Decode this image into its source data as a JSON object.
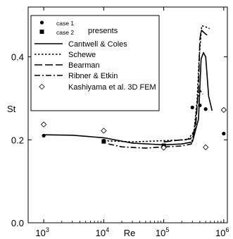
{
  "chart_data": {
    "type": "scatter",
    "title": "",
    "xlabel": "Re",
    "ylabel": "St",
    "xscale": "log",
    "xlim": [
      550,
      1150000
    ],
    "ylim": [
      0.0,
      0.52
    ],
    "x_ticks": [
      {
        "value": 1000,
        "base": "10",
        "exp": "3"
      },
      {
        "value": 10000,
        "base": "10",
        "exp": "4"
      },
      {
        "value": 100000,
        "base": "10",
        "exp": "5"
      },
      {
        "value": 1000000,
        "base": "10",
        "exp": "6"
      }
    ],
    "y_ticks": [
      {
        "value": 0.0,
        "label": "0.0"
      },
      {
        "value": 0.2,
        "label": "0.2"
      },
      {
        "value": 0.4,
        "label": "0.4"
      }
    ],
    "legend": {
      "position": "top-left",
      "group_title": "presents",
      "items": [
        {
          "label": "case 1",
          "marker": "circle"
        },
        {
          "label": "case 2",
          "marker": "square"
        },
        {
          "label": "Cantwell & Coles",
          "line": "solid"
        },
        {
          "label": "Schewe",
          "line": "dotted"
        },
        {
          "label": "Bearman",
          "line": "long-dash"
        },
        {
          "label": "Ribner & Etkin",
          "line": "dash-dot"
        },
        {
          "label": "Kashiyama et al. 3D FEM",
          "marker": "diamond"
        }
      ]
    },
    "series": [
      {
        "name": "case 1",
        "kind": "points",
        "marker": "circle",
        "points": [
          [
            1000,
            0.21
          ],
          [
            10000,
            0.198
          ],
          [
            100000,
            0.183
          ],
          [
            300000,
            0.278
          ],
          [
            400000,
            0.283
          ],
          [
            500000,
            0.274
          ],
          [
            1000000,
            0.215
          ]
        ]
      },
      {
        "name": "case 2",
        "kind": "points",
        "marker": "square",
        "points": [
          [
            10000,
            0.196
          ],
          [
            100000,
            0.186
          ]
        ]
      },
      {
        "name": "Kashiyama et al. 3D FEM",
        "kind": "points",
        "marker": "diamond",
        "points": [
          [
            1000,
            0.237
          ],
          [
            10000,
            0.222
          ],
          [
            100000,
            0.181
          ],
          [
            500000,
            0.182
          ],
          [
            1000000,
            0.272
          ]
        ]
      },
      {
        "name": "Cantwell & Coles",
        "kind": "line",
        "style": "solid",
        "points": [
          [
            1000,
            0.212
          ],
          [
            3000,
            0.211
          ],
          [
            10000,
            0.205
          ],
          [
            30000,
            0.192
          ],
          [
            100000,
            0.188
          ],
          [
            200000,
            0.19
          ],
          [
            300000,
            0.195
          ],
          [
            380000,
            0.25
          ],
          [
            420000,
            0.395
          ],
          [
            460000,
            0.41
          ],
          [
            500000,
            0.4
          ],
          [
            560000,
            0.305
          ],
          [
            640000,
            0.27
          ]
        ]
      },
      {
        "name": "Schewe",
        "kind": "line",
        "style": "dotted",
        "points": [
          [
            10000,
            0.198
          ],
          [
            30000,
            0.195
          ],
          [
            100000,
            0.198
          ],
          [
            250000,
            0.2
          ],
          [
            320000,
            0.22
          ],
          [
            360000,
            0.295
          ],
          [
            390000,
            0.4
          ],
          [
            430000,
            0.475
          ],
          [
            500000,
            0.472
          ],
          [
            580000,
            0.468
          ]
        ]
      },
      {
        "name": "Bearman",
        "kind": "line",
        "style": "long-dash",
        "points": [
          [
            100000,
            0.195
          ],
          [
            200000,
            0.2
          ],
          [
            280000,
            0.202
          ],
          [
            340000,
            0.23
          ],
          [
            380000,
            0.33
          ],
          [
            400000,
            0.44
          ],
          [
            420000,
            0.465
          ],
          [
            500000,
            0.455
          ],
          [
            560000,
            0.45
          ]
        ]
      },
      {
        "name": "Ribner & Etkin",
        "kind": "line",
        "style": "dash-dot",
        "points": [
          [
            12000,
            0.19
          ],
          [
            20000,
            0.183
          ],
          [
            50000,
            0.18
          ],
          [
            100000,
            0.183
          ],
          [
            200000,
            0.185
          ],
          [
            290000,
            0.19
          ],
          [
            330000,
            0.23
          ],
          [
            370000,
            0.3
          ],
          [
            400000,
            0.32
          ],
          [
            450000,
            0.31
          ]
        ]
      }
    ]
  }
}
